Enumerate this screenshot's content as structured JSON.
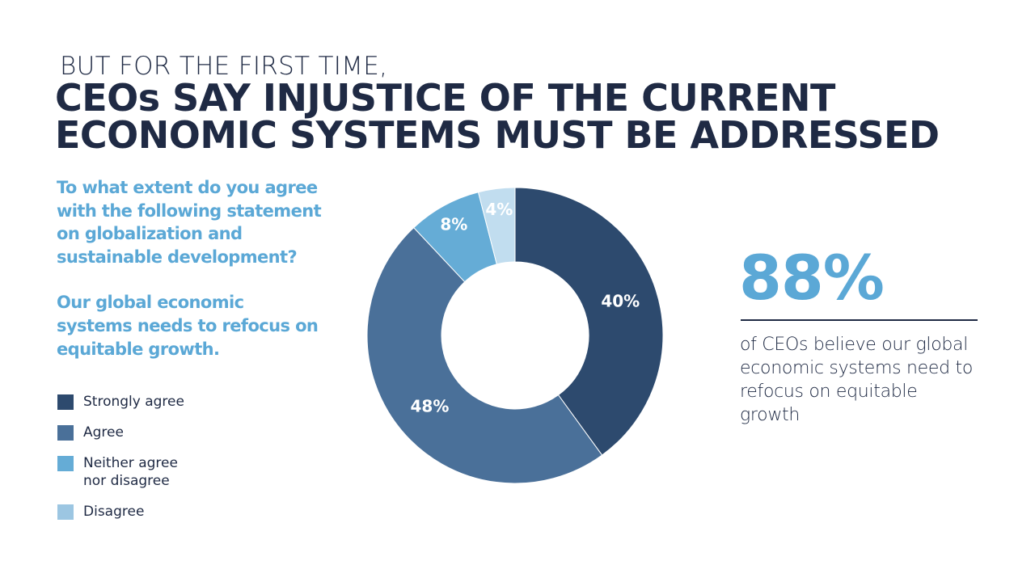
{
  "eyebrow": "BUT FOR THE FIRST TIME,",
  "headline": {
    "line1": "CEOs SAY INJUSTICE OF THE CURRENT",
    "line2": "ECONOMIC SYSTEMS MUST BE ADDRESSED"
  },
  "question": "To what extent do you agree with the following statement on globalization and sustainable development?",
  "statement": "Our global economic systems needs to refocus on equitable growth.",
  "stat": {
    "value": "88%",
    "description": "of CEOs believe our global economic systems need to refocus on equitable growth"
  },
  "legend": {
    "items": [
      {
        "label": "Strongly agree",
        "color": "#2d4a6e"
      },
      {
        "label": "Agree",
        "color": "#4a7099"
      },
      {
        "label": "Neither agree\nnor disagree",
        "color": "#65acd6"
      },
      {
        "label": "Disagree",
        "color": "#9cc6e2"
      }
    ]
  },
  "chart_data": {
    "type": "pie",
    "donut": true,
    "categories": [
      "Strongly agree",
      "Agree",
      "Neither agree nor disagree",
      "Disagree"
    ],
    "values": [
      40,
      48,
      8,
      4
    ],
    "labels": [
      "40%",
      "48%",
      "8%",
      "4%"
    ],
    "colors": [
      "#2d4a6e",
      "#4a7099",
      "#65acd6",
      "#c1ddef"
    ],
    "start": "top",
    "direction": "clockwise",
    "legend": "left"
  }
}
